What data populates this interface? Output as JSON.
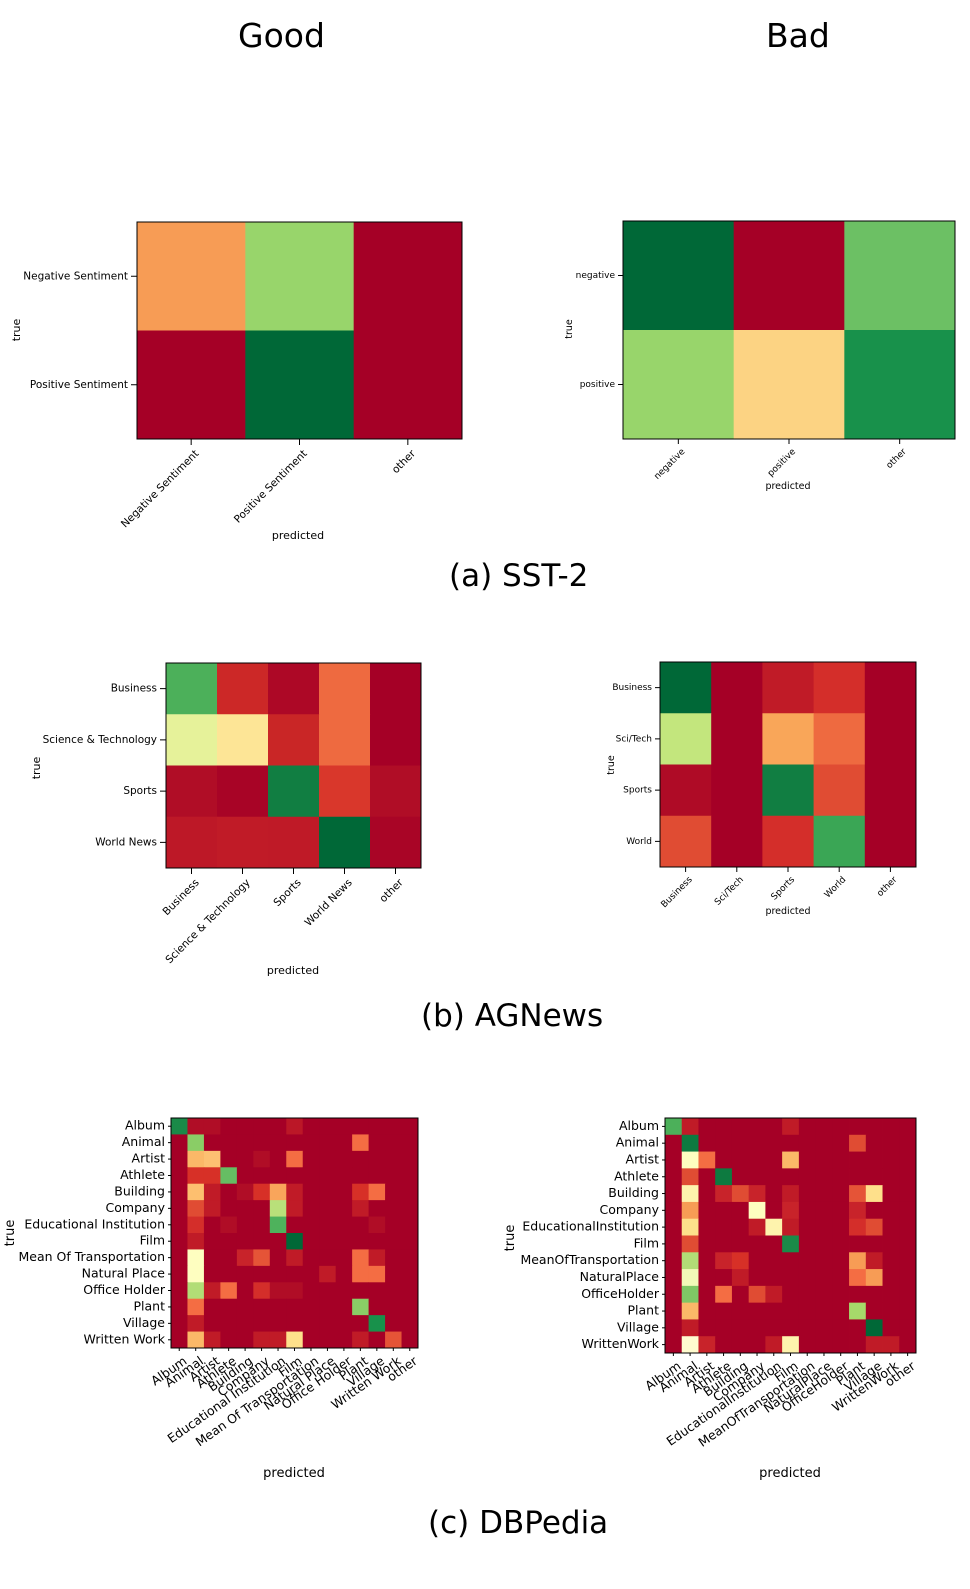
{
  "headers": {
    "good": "Good",
    "bad": "Bad"
  },
  "captions": {
    "a": "(a) SST-2",
    "b": "(b) AGNews",
    "c": "(c) DBPedia"
  },
  "chart_data": [
    {
      "id": "sst2-good",
      "type": "heatmap",
      "xlabel": "predicted",
      "ylabel": "true",
      "y_categories": [
        "Negative Sentiment",
        "Positive Sentiment"
      ],
      "x_categories": [
        "Negative Sentiment",
        "Positive Sentiment",
        "other"
      ],
      "colors": [
        [
          "#f79c55",
          "#98d56b",
          "#a50026"
        ],
        [
          "#a50026",
          "#006837",
          "#a50026"
        ]
      ]
    },
    {
      "id": "sst2-bad",
      "type": "heatmap",
      "xlabel": "predicted",
      "ylabel": "true",
      "y_categories": [
        "negative",
        "positive"
      ],
      "x_categories": [
        "negative",
        "positive",
        "other"
      ],
      "colors": [
        [
          "#006837",
          "#a50026",
          "#6cc064"
        ],
        [
          "#98d56b",
          "#fcd383",
          "#18914b"
        ]
      ]
    },
    {
      "id": "agnews-good",
      "type": "heatmap",
      "xlabel": "predicted",
      "ylabel": "true",
      "y_categories": [
        "Business",
        "Science & Technology",
        "Sports",
        "World News"
      ],
      "x_categories": [
        "Business",
        "Science & Technology",
        "Sports",
        "World News",
        "other"
      ],
      "colors": [
        [
          "#4cb05a",
          "#cc2827",
          "#ad0826",
          "#ee6a40",
          "#a50026"
        ],
        [
          "#e6f29a",
          "#fde596",
          "#c92626",
          "#ee6a40",
          "#a50026"
        ],
        [
          "#b00d26",
          "#a80426",
          "#117e42",
          "#d9372b",
          "#b00d26"
        ],
        [
          "#bd1827",
          "#c01b27",
          "#bf1a27",
          "#006837",
          "#a90526"
        ]
      ]
    },
    {
      "id": "agnews-bad",
      "type": "heatmap",
      "xlabel": "predicted",
      "ylabel": "true",
      "y_categories": [
        "Business",
        "Sci/Tech",
        "Sports",
        "World"
      ],
      "x_categories": [
        "Business",
        "Sci/Tech",
        "Sports",
        "World",
        "other"
      ],
      "colors": [
        [
          "#006837",
          "#a50026",
          "#c01b27",
          "#d42e2a",
          "#a50026"
        ],
        [
          "#c3e67d",
          "#a50026",
          "#f9a659",
          "#ee6a40",
          "#a50026"
        ],
        [
          "#af0b26",
          "#a50026",
          "#117e42",
          "#e04c33",
          "#a50026"
        ],
        [
          "#e04c33",
          "#a50026",
          "#d42e2a",
          "#3aa655",
          "#a50026"
        ]
      ]
    },
    {
      "id": "dbpedia-good",
      "type": "heatmap",
      "xlabel": "predicted",
      "ylabel": "true",
      "y_categories": [
        "Album",
        "Animal",
        "Artist",
        "Athlete",
        "Building",
        "Company",
        "Educational Institution",
        "Film",
        "Mean Of Transportation",
        "Natural Place",
        "Office Holder",
        "Plant",
        "Village",
        "Written Work"
      ],
      "x_categories": [
        "Album",
        "Animal",
        "Artist",
        "Athlete",
        "Building",
        "Company",
        "Educational Institution",
        "Film",
        "Mean Of Transportation",
        "Natural Place",
        "Office Holder",
        "Plant",
        "Village",
        "Written Work",
        "other"
      ],
      "base_color": "#a50026",
      "highlights": [
        [
          0,
          0,
          "#1a8a48"
        ],
        [
          0,
          1,
          "#b00d26"
        ],
        [
          0,
          2,
          "#b00d26"
        ],
        [
          0,
          7,
          "#bb1727"
        ],
        [
          1,
          1,
          "#8acd66"
        ],
        [
          1,
          11,
          "#f46d43"
        ],
        [
          2,
          1,
          "#fbb868"
        ],
        [
          2,
          2,
          "#fdc072"
        ],
        [
          2,
          5,
          "#b00d26"
        ],
        [
          2,
          7,
          "#f46d43"
        ],
        [
          3,
          1,
          "#d73027"
        ],
        [
          3,
          2,
          "#d73027"
        ],
        [
          3,
          3,
          "#66bd63"
        ],
        [
          4,
          1,
          "#fdbf6f"
        ],
        [
          4,
          2,
          "#c01b27"
        ],
        [
          4,
          4,
          "#b00d26"
        ],
        [
          4,
          5,
          "#d73027"
        ],
        [
          4,
          6,
          "#f9a55b"
        ],
        [
          4,
          7,
          "#c01b27"
        ],
        [
          4,
          11,
          "#d73027"
        ],
        [
          4,
          12,
          "#f46d43"
        ],
        [
          5,
          1,
          "#e04c33"
        ],
        [
          5,
          2,
          "#c01b27"
        ],
        [
          5,
          6,
          "#b9e07a"
        ],
        [
          5,
          7,
          "#c01b27"
        ],
        [
          5,
          11,
          "#c01b27"
        ],
        [
          6,
          1,
          "#d42e2a"
        ],
        [
          6,
          3,
          "#b00d26"
        ],
        [
          6,
          6,
          "#4eb25c"
        ],
        [
          6,
          12,
          "#b00d26"
        ],
        [
          7,
          1,
          "#c01b27"
        ],
        [
          7,
          7,
          "#006837"
        ],
        [
          8,
          1,
          "#fefec0"
        ],
        [
          8,
          4,
          "#c8232a"
        ],
        [
          8,
          5,
          "#e55437"
        ],
        [
          8,
          7,
          "#c01b27"
        ],
        [
          8,
          11,
          "#f46d43"
        ],
        [
          8,
          12,
          "#c01b27"
        ],
        [
          9,
          1,
          "#fefec0"
        ],
        [
          9,
          9,
          "#c01b27"
        ],
        [
          9,
          11,
          "#f46d43"
        ],
        [
          9,
          12,
          "#f46d43"
        ],
        [
          10,
          1,
          "#b2dd76"
        ],
        [
          10,
          2,
          "#c01b27"
        ],
        [
          10,
          3,
          "#f46d43"
        ],
        [
          10,
          5,
          "#d42e2a"
        ],
        [
          10,
          6,
          "#b00d26"
        ],
        [
          10,
          7,
          "#b00d26"
        ],
        [
          11,
          1,
          "#f46d43"
        ],
        [
          11,
          11,
          "#8acd66"
        ],
        [
          12,
          1,
          "#c01b27"
        ],
        [
          12,
          12,
          "#18914b"
        ],
        [
          13,
          1,
          "#fbb868"
        ],
        [
          13,
          2,
          "#c01b27"
        ],
        [
          13,
          5,
          "#c01b27"
        ],
        [
          13,
          6,
          "#c01b27"
        ],
        [
          13,
          7,
          "#fee08b"
        ],
        [
          13,
          11,
          "#c01b27"
        ],
        [
          13,
          13,
          "#e55437"
        ]
      ]
    },
    {
      "id": "dbpedia-bad",
      "type": "heatmap",
      "xlabel": "predicted",
      "ylabel": "true",
      "y_categories": [
        "Album",
        "Animal",
        "Artist",
        "Athlete",
        "Building",
        "Company",
        "EducationalInstitution",
        "Film",
        "MeanOfTransportation",
        "NaturalPlace",
        "OfficeHolder",
        "Plant",
        "Village",
        "WrittenWork"
      ],
      "x_categories": [
        "Album",
        "Animal",
        "Artist",
        "Athlete",
        "Building",
        "Company",
        "EducationalInstitution",
        "Film",
        "MeanOfTransportation",
        "NaturalPlace",
        "OfficeHolder",
        "Plant",
        "Village",
        "WrittenWork",
        "other"
      ],
      "base_color": "#a50026",
      "highlights": [
        [
          0,
          0,
          "#4cb05a"
        ],
        [
          0,
          1,
          "#c01b27"
        ],
        [
          0,
          7,
          "#c01b27"
        ],
        [
          1,
          1,
          "#0d7a40"
        ],
        [
          1,
          11,
          "#e04c33"
        ],
        [
          2,
          1,
          "#fefec0"
        ],
        [
          2,
          2,
          "#f46d43"
        ],
        [
          2,
          7,
          "#fbb868"
        ],
        [
          3,
          1,
          "#e04c33"
        ],
        [
          3,
          3,
          "#0d7a40"
        ],
        [
          4,
          1,
          "#fef3ad"
        ],
        [
          4,
          3,
          "#c8232a"
        ],
        [
          4,
          4,
          "#e04c33"
        ],
        [
          4,
          5,
          "#c8232a"
        ],
        [
          4,
          7,
          "#c01b27"
        ],
        [
          4,
          11,
          "#e55437"
        ],
        [
          4,
          12,
          "#fee08b"
        ],
        [
          5,
          1,
          "#f79c55"
        ],
        [
          5,
          5,
          "#fefec0"
        ],
        [
          5,
          7,
          "#c8232a"
        ],
        [
          5,
          11,
          "#c8232a"
        ],
        [
          6,
          1,
          "#fde08b"
        ],
        [
          6,
          5,
          "#c01b27"
        ],
        [
          6,
          6,
          "#fef3ad"
        ],
        [
          6,
          7,
          "#c01b27"
        ],
        [
          6,
          11,
          "#d42e2a"
        ],
        [
          6,
          12,
          "#e04c33"
        ],
        [
          7,
          1,
          "#e04c33"
        ],
        [
          7,
          7,
          "#1a8a48"
        ],
        [
          8,
          1,
          "#b2dd76"
        ],
        [
          8,
          3,
          "#c8232a"
        ],
        [
          8,
          4,
          "#d73027"
        ],
        [
          8,
          11,
          "#f79c55"
        ],
        [
          8,
          12,
          "#c01b27"
        ],
        [
          9,
          1,
          "#f2f9b8"
        ],
        [
          9,
          4,
          "#c01b27"
        ],
        [
          9,
          11,
          "#f46d43"
        ],
        [
          9,
          12,
          "#f79c55"
        ],
        [
          10,
          1,
          "#7fc765"
        ],
        [
          10,
          3,
          "#f46d43"
        ],
        [
          10,
          5,
          "#e04c33"
        ],
        [
          10,
          6,
          "#c01b27"
        ],
        [
          11,
          1,
          "#fbb868"
        ],
        [
          11,
          11,
          "#a6d96a"
        ],
        [
          12,
          1,
          "#c01b27"
        ],
        [
          12,
          12,
          "#006837"
        ],
        [
          13,
          1,
          "#fffbcf"
        ],
        [
          13,
          2,
          "#c8232a"
        ],
        [
          13,
          6,
          "#c01b27"
        ],
        [
          13,
          7,
          "#fef3ad"
        ],
        [
          13,
          12,
          "#c01b27"
        ],
        [
          13,
          13,
          "#c01b27"
        ]
      ]
    }
  ]
}
